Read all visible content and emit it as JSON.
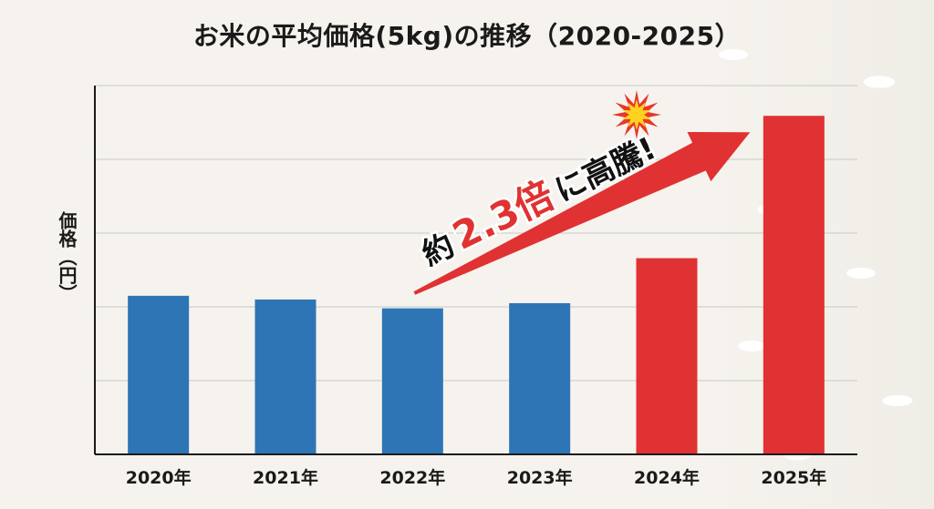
{
  "chart_data": {
    "type": "bar",
    "title": "お米の平均価格(5kg)の推移（2020-2025）",
    "ylabel": "価格（円）",
    "xlabel": "",
    "categories": [
      "2020年",
      "2021年",
      "2022年",
      "2023年",
      "2024年",
      "2025年"
    ],
    "values": [
      2150,
      2100,
      1980,
      2050,
      2660,
      4590
    ],
    "ylim": [
      0,
      5000
    ],
    "yticks": [
      0,
      1000,
      2000,
      3000,
      4000,
      5000
    ],
    "bar_colors": [
      "#2e75b6",
      "#2e75b6",
      "#2e75b6",
      "#2e75b6",
      "#e03232",
      "#e03232"
    ],
    "grid": true,
    "annotation": {
      "prefix": "約",
      "highlight": "2.3倍",
      "suffix": "に高騰!",
      "from_category": "2022年",
      "to_category": "2025年",
      "arrow_color": "#e03232",
      "highlight_color": "#e03232",
      "icon": "explosion-icon"
    }
  },
  "colors": {
    "blue": "#2e75b6",
    "red": "#e03232",
    "grid": "#c9c9c9",
    "axis": "#1a1a1a"
  }
}
